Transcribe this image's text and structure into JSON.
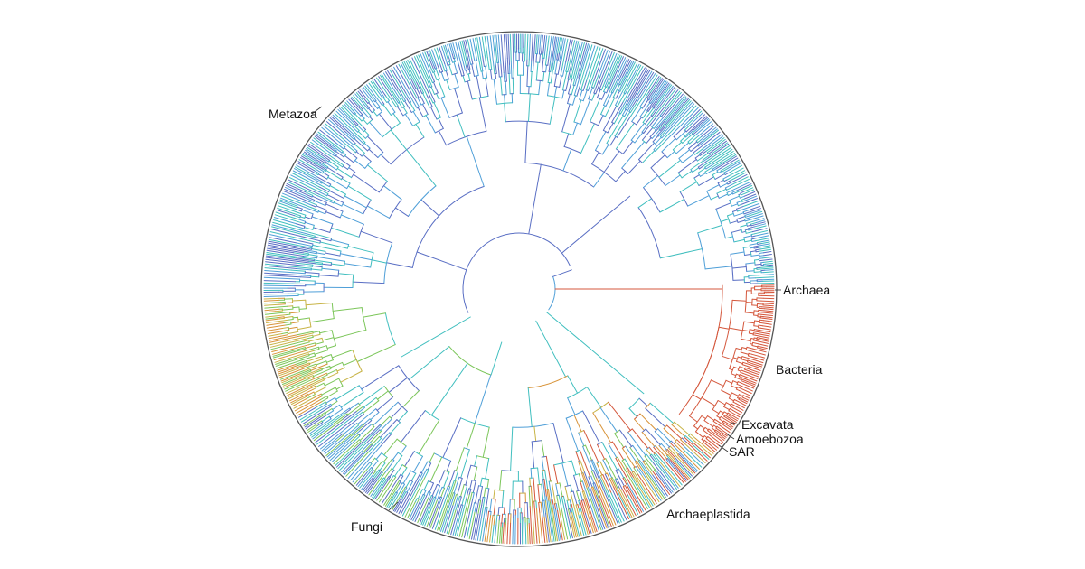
{
  "clades": [
    {
      "id": "metazoa",
      "label": "Metazoa"
    },
    {
      "id": "archaea",
      "label": "Archaea"
    },
    {
      "id": "bacteria",
      "label": "Bacteria"
    },
    {
      "id": "excavata",
      "label": "Excavata"
    },
    {
      "id": "amoebozoa",
      "label": "Amoebozoa"
    },
    {
      "id": "sar",
      "label": "SAR"
    },
    {
      "id": "archaeplastida",
      "label": "Archaeplastida"
    },
    {
      "id": "fungi",
      "label": "Fungi"
    }
  ],
  "palette": {
    "blue": "#5a6fc4",
    "light_blue": "#4f9fd8",
    "teal": "#41bfbf",
    "green": "#7cc65a",
    "yellow": "#c8b447",
    "orange": "#d8943a",
    "red": "#d4573c",
    "ring": "#555555"
  }
}
